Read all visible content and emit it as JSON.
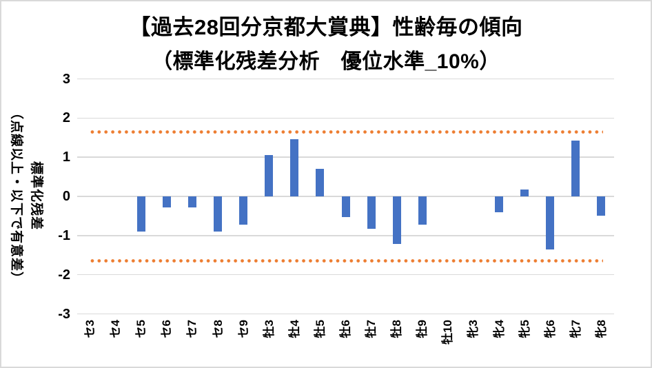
{
  "chart_data": {
    "type": "bar",
    "title": "【過去28回分京都大賞典】性齢毎の傾向",
    "subtitle": "（標準化残差分析　優位水準_10%）",
    "categories": [
      "セ3",
      "セ4",
      "セ5",
      "セ6",
      "セ7",
      "セ8",
      "セ9",
      "牡3",
      "牡4",
      "牡5",
      "牡6",
      "牡7",
      "牡8",
      "牡9",
      "牡10",
      "牝3",
      "牝4",
      "牝5",
      "牝6",
      "牝7",
      "牝8"
    ],
    "values": [
      null,
      null,
      -0.9,
      -0.29,
      -0.29,
      -0.9,
      -0.73,
      1.05,
      1.46,
      0.71,
      -0.52,
      -0.83,
      -1.22,
      -0.73,
      null,
      null,
      -0.4,
      0.17,
      -1.35,
      1.43,
      -0.5
    ],
    "ylabel_line1": "標準化残差",
    "ylabel_line2": "（点線以上・以下で有意差）",
    "yticks": [
      "3",
      "2",
      "1",
      "0",
      "-1",
      "-2",
      "-3"
    ],
    "ylim": [
      -3,
      3
    ],
    "significance_threshold": 1.645,
    "threshold_lines": [
      1.645,
      -1.645
    ],
    "grid": true,
    "legend": false,
    "colors": {
      "bar": "#4472C4",
      "threshold": "#ED7D31",
      "gridline": "#D9D9D9",
      "text": "#000000",
      "border": "#D9D9D9"
    }
  }
}
